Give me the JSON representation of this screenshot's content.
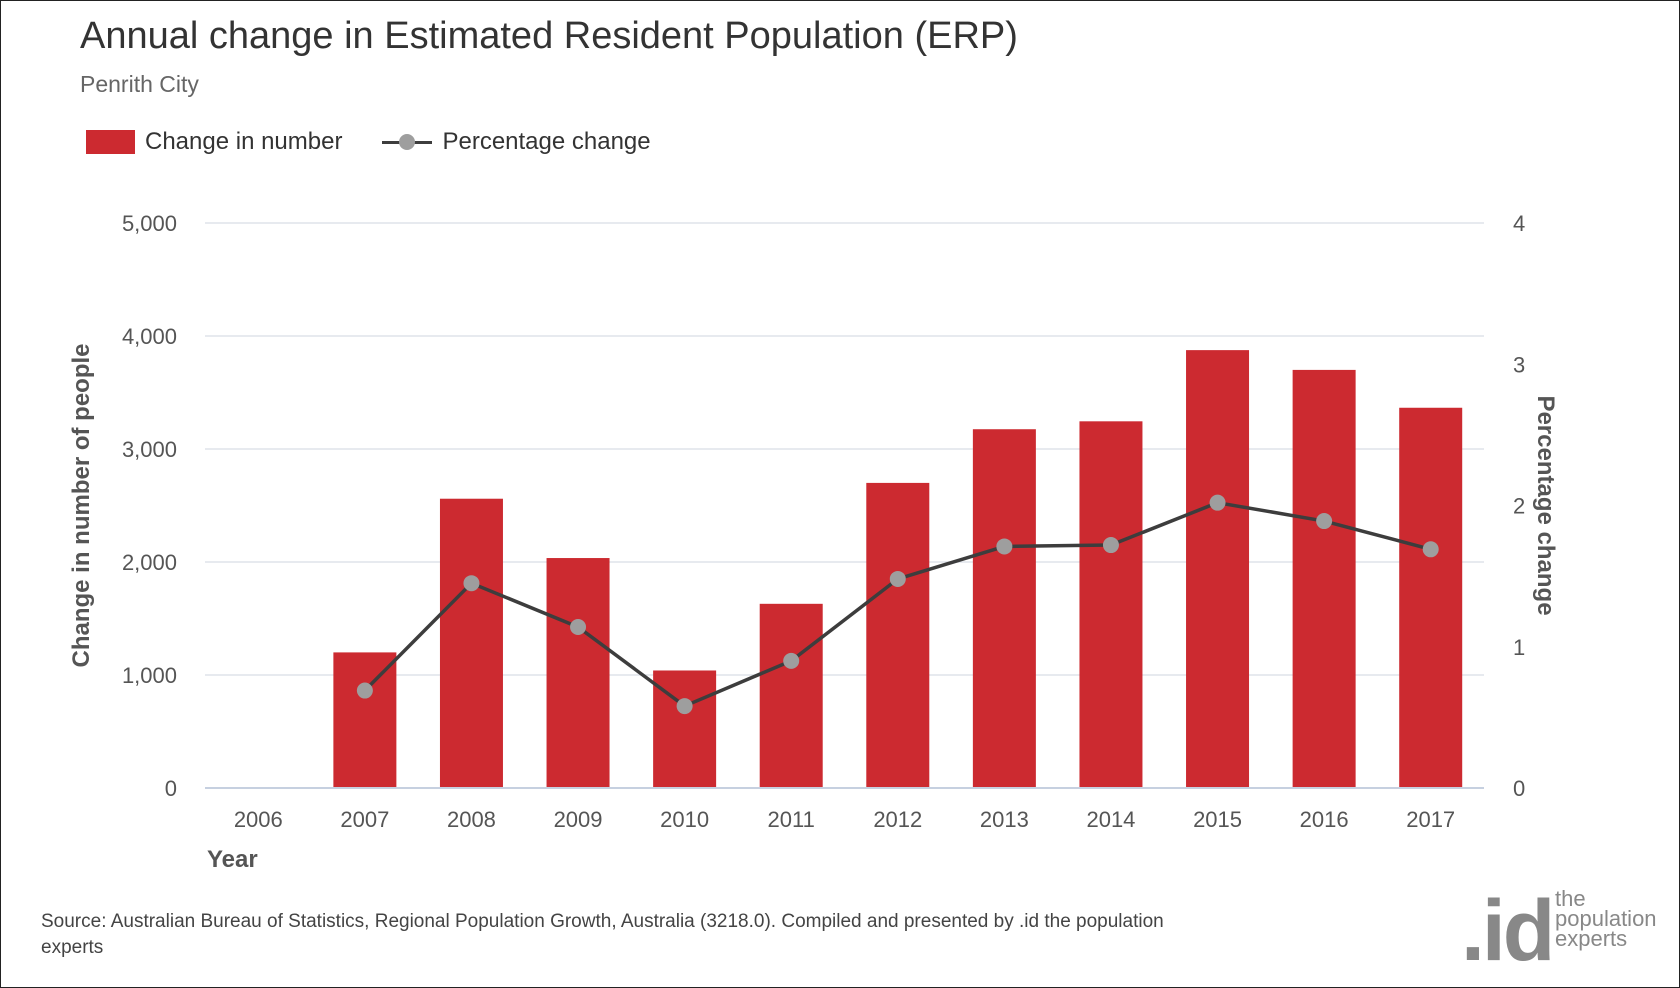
{
  "header": {
    "title": "Annual change in Estimated Resident Population (ERP)",
    "subtitle": "Penrith City"
  },
  "legend": {
    "bar_label": "Change in number",
    "line_label": "Percentage change"
  },
  "colors": {
    "bar": "#cc2a30",
    "line": "#3d3d3d",
    "marker": "#9e9e9e",
    "grid": "#dfe3ea",
    "axis": "#c6d0e0"
  },
  "source": {
    "text": "Source: Australian Bureau of Statistics, Regional Population Growth, Australia (3218.0). Compiled and presented by .id the population experts"
  },
  "logo": {
    "mark": ".id",
    "tagline": "the population experts"
  },
  "chart_data": {
    "type": "bar",
    "title": "Annual change in Estimated Resident Population (ERP)",
    "subtitle": "Penrith City",
    "xlabel": "Year",
    "ylabel": "Change in number of people",
    "y2label": "Percentage change",
    "categories": [
      "2006",
      "2007",
      "2008",
      "2009",
      "2010",
      "2011",
      "2012",
      "2013",
      "2014",
      "2015",
      "2016",
      "2017"
    ],
    "series": [
      {
        "name": "Change in number",
        "type": "bar",
        "axis": "left",
        "values": [
          null,
          1200,
          2560,
          2035,
          1040,
          1630,
          2700,
          3175,
          3245,
          3875,
          3700,
          3365
        ]
      },
      {
        "name": "Percentage change",
        "type": "line",
        "axis": "right",
        "values": [
          null,
          0.69,
          1.45,
          1.14,
          0.58,
          0.9,
          1.48,
          1.71,
          1.72,
          2.02,
          1.89,
          1.69
        ]
      }
    ],
    "ylim": [
      0,
      5000
    ],
    "yticks": [
      "0",
      "1,000",
      "2,000",
      "3,000",
      "4,000",
      "5,000"
    ],
    "y2lim": [
      0,
      4
    ],
    "y2ticks": [
      "0",
      "1",
      "2",
      "3",
      "4"
    ],
    "grid": true,
    "legend_position": "top-left"
  }
}
